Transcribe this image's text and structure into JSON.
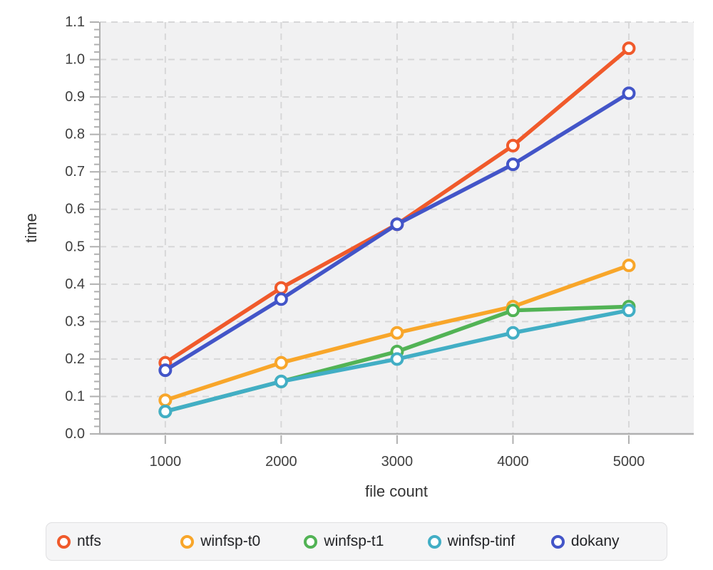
{
  "chart_data": {
    "type": "line",
    "title": "",
    "xlabel": "file count",
    "ylabel": "time",
    "x": [
      1000,
      2000,
      3000,
      4000,
      5000
    ],
    "x_tick_labels": [
      "1000",
      "2000",
      "3000",
      "4000",
      "5000"
    ],
    "y_ticks": [
      0.0,
      0.1,
      0.2,
      0.3,
      0.4,
      0.5,
      0.6,
      0.7,
      0.8,
      0.9,
      1.0,
      1.1
    ],
    "y_tick_labels": [
      "0.0",
      "0.1",
      "0.2",
      "0.3",
      "0.4",
      "0.5",
      "0.6",
      "0.7",
      "0.8",
      "0.9",
      "1.0",
      "1.1"
    ],
    "y_minor_step": 0.02,
    "xlim": [
      435,
      5560
    ],
    "ylim": [
      0,
      1.1
    ],
    "grid": true,
    "legend_position": "bottom",
    "series": [
      {
        "name": "ntfs",
        "color": "#f05a2b",
        "values": [
          0.19,
          0.39,
          0.56,
          0.77,
          1.03
        ]
      },
      {
        "name": "winfsp-t0",
        "color": "#f8a62a",
        "values": [
          0.09,
          0.19,
          0.27,
          0.34,
          0.45
        ]
      },
      {
        "name": "winfsp-t1",
        "color": "#52b355",
        "values": [
          0.06,
          0.14,
          0.22,
          0.33,
          0.34
        ]
      },
      {
        "name": "winfsp-tinf",
        "color": "#42aec5",
        "values": [
          0.06,
          0.14,
          0.2,
          0.27,
          0.33
        ]
      },
      {
        "name": "dokany",
        "color": "#4355c8",
        "values": [
          0.17,
          0.36,
          0.56,
          0.72,
          0.91
        ]
      }
    ],
    "style_colors": {
      "plot_background": "#f1f1f2",
      "gridline": "#d7d7d8",
      "axis": "#b0b0b0",
      "tick_text": "#3f3f3f",
      "legend_background": "#f5f5f6",
      "legend_border": "#e0e0e2",
      "legend_text": "#222326"
    }
  }
}
